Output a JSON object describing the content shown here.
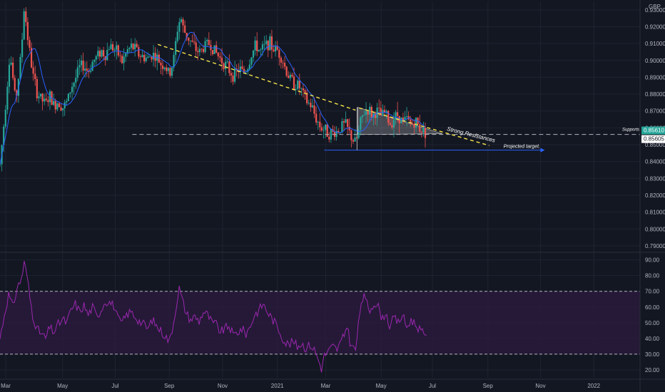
{
  "currency": "GBP",
  "colors": {
    "background": "#131722",
    "grid": "#1f2330",
    "up": "#26a69a",
    "down": "#ef5350",
    "ma": "#2962ff",
    "trendline": "#f5e44b",
    "rsi": "#9c27b0",
    "rsi_band": "#2a1a3d",
    "price_tag": "#26a69a"
  },
  "chart_data": [
    {
      "type": "candlestick",
      "pair_currency": "GBP",
      "x_tick_labels": [
        "Mar",
        "May",
        "Jul",
        "Sep",
        "Nov",
        "2021",
        "Mar",
        "May",
        "Jul",
        "Sep",
        "Nov",
        "2022"
      ],
      "y_tick_labels": [
        "0.93000",
        "0.92000",
        "0.91000",
        "0.90000",
        "0.89000",
        "0.88000",
        "0.87000",
        "0.86000",
        "0.85000",
        "0.84000",
        "0.83000",
        "0.82000",
        "0.81000",
        "0.80000",
        "0.79000"
      ],
      "ylim": [
        0.787,
        0.935
      ],
      "current_price": "0.85610",
      "support_price": "0.85605",
      "support_level": 0.8561,
      "target_level": 0.8468,
      "annotations": {
        "supports": "Supports",
        "strong_resistance": "Strong Resistances",
        "projected_target": "Projected target."
      },
      "price_path": [
        [
          0,
          0.838
        ],
        [
          6,
          0.865
        ],
        [
          14,
          0.905
        ],
        [
          22,
          0.875
        ],
        [
          30,
          0.905
        ],
        [
          34,
          0.932
        ],
        [
          40,
          0.91
        ],
        [
          46,
          0.892
        ],
        [
          52,
          0.881
        ],
        [
          58,
          0.877
        ],
        [
          64,
          0.874
        ],
        [
          70,
          0.879
        ],
        [
          76,
          0.873
        ],
        [
          82,
          0.876
        ],
        [
          88,
          0.872
        ],
        [
          94,
          0.875
        ],
        [
          100,
          0.884
        ],
        [
          106,
          0.889
        ],
        [
          112,
          0.896
        ],
        [
          118,
          0.897
        ],
        [
          124,
          0.893
        ],
        [
          130,
          0.899
        ],
        [
          136,
          0.902
        ],
        [
          142,
          0.906
        ],
        [
          148,
          0.903
        ],
        [
          154,
          0.909
        ],
        [
          160,
          0.907
        ],
        [
          166,
          0.904
        ],
        [
          172,
          0.899
        ],
        [
          178,
          0.905
        ],
        [
          184,
          0.908
        ],
        [
          190,
          0.907
        ],
        [
          196,
          0.903
        ],
        [
          202,
          0.902
        ],
        [
          208,
          0.901
        ],
        [
          214,
          0.904
        ],
        [
          220,
          0.902
        ],
        [
          226,
          0.898
        ],
        [
          232,
          0.897
        ],
        [
          238,
          0.891
        ],
        [
          244,
          0.9
        ],
        [
          250,
          0.92
        ],
        [
          254,
          0.926
        ],
        [
          258,
          0.918
        ],
        [
          264,
          0.914
        ],
        [
          270,
          0.91
        ],
        [
          276,
          0.906
        ],
        [
          282,
          0.905
        ],
        [
          288,
          0.909
        ],
        [
          294,
          0.91
        ],
        [
          300,
          0.907
        ],
        [
          306,
          0.903
        ],
        [
          312,
          0.9
        ],
        [
          318,
          0.897
        ],
        [
          324,
          0.893
        ],
        [
          330,
          0.891
        ],
        [
          336,
          0.895
        ],
        [
          342,
          0.893
        ],
        [
          348,
          0.896
        ],
        [
          354,
          0.904
        ],
        [
          360,
          0.909
        ],
        [
          366,
          0.905
        ],
        [
          372,
          0.908
        ],
        [
          378,
          0.911
        ],
        [
          384,
          0.907
        ],
        [
          390,
          0.906
        ],
        [
          396,
          0.902
        ],
        [
          402,
          0.894
        ],
        [
          408,
          0.889
        ],
        [
          414,
          0.886
        ],
        [
          420,
          0.885
        ],
        [
          426,
          0.88
        ],
        [
          432,
          0.875
        ],
        [
          438,
          0.873
        ],
        [
          444,
          0.866
        ],
        [
          450,
          0.861
        ],
        [
          456,
          0.859
        ],
        [
          462,
          0.857
        ],
        [
          468,
          0.857
        ],
        [
          474,
          0.858
        ],
        [
          480,
          0.861
        ],
        [
          486,
          0.862
        ],
        [
          490,
          0.858
        ],
        [
          496,
          0.853
        ],
        [
          500,
          0.851
        ],
        [
          504,
          0.857
        ],
        [
          508,
          0.865
        ],
        [
          512,
          0.869
        ],
        [
          518,
          0.871
        ],
        [
          524,
          0.867
        ],
        [
          530,
          0.87
        ],
        [
          536,
          0.867
        ],
        [
          542,
          0.869
        ],
        [
          548,
          0.862
        ],
        [
          554,
          0.866
        ],
        [
          560,
          0.868
        ],
        [
          566,
          0.863
        ],
        [
          572,
          0.865
        ],
        [
          578,
          0.862
        ],
        [
          584,
          0.864
        ],
        [
          590,
          0.86
        ],
        [
          596,
          0.858
        ],
        [
          600,
          0.857
        ]
      ],
      "rsi": {
        "y_tick_labels": [
          "90.00",
          "80.00",
          "70.00",
          "60.00",
          "50.00",
          "40.00",
          "30.00",
          "20.00"
        ],
        "ylim": [
          15,
          93
        ],
        "upper": 70,
        "lower": 30,
        "path": [
          [
            0,
            40
          ],
          [
            6,
            55
          ],
          [
            12,
            68
          ],
          [
            18,
            60
          ],
          [
            24,
            72
          ],
          [
            30,
            78
          ],
          [
            34,
            88
          ],
          [
            38,
            80
          ],
          [
            42,
            66
          ],
          [
            46,
            55
          ],
          [
            52,
            46
          ],
          [
            58,
            43
          ],
          [
            64,
            40
          ],
          [
            70,
            47
          ],
          [
            76,
            44
          ],
          [
            82,
            49
          ],
          [
            88,
            52
          ],
          [
            94,
            50
          ],
          [
            100,
            58
          ],
          [
            106,
            62
          ],
          [
            112,
            57
          ],
          [
            118,
            61
          ],
          [
            124,
            55
          ],
          [
            130,
            60
          ],
          [
            136,
            54
          ],
          [
            142,
            58
          ],
          [
            148,
            64
          ],
          [
            154,
            63
          ],
          [
            160,
            61
          ],
          [
            166,
            52
          ],
          [
            172,
            50
          ],
          [
            178,
            55
          ],
          [
            184,
            57
          ],
          [
            190,
            54
          ],
          [
            196,
            51
          ],
          [
            202,
            49
          ],
          [
            208,
            46
          ],
          [
            214,
            52
          ],
          [
            220,
            48
          ],
          [
            226,
            45
          ],
          [
            232,
            42
          ],
          [
            238,
            38
          ],
          [
            244,
            50
          ],
          [
            248,
            62
          ],
          [
            252,
            72
          ],
          [
            256,
            65
          ],
          [
            262,
            56
          ],
          [
            268,
            52
          ],
          [
            274,
            54
          ],
          [
            280,
            51
          ],
          [
            286,
            57
          ],
          [
            292,
            55
          ],
          [
            298,
            50
          ],
          [
            304,
            49
          ],
          [
            310,
            44
          ],
          [
            316,
            46
          ],
          [
            322,
            48
          ],
          [
            328,
            42
          ],
          [
            334,
            44
          ],
          [
            340,
            46
          ],
          [
            346,
            43
          ],
          [
            352,
            48
          ],
          [
            358,
            55
          ],
          [
            364,
            58
          ],
          [
            370,
            62
          ],
          [
            376,
            57
          ],
          [
            382,
            53
          ],
          [
            388,
            49
          ],
          [
            394,
            44
          ],
          [
            400,
            38
          ],
          [
            406,
            36
          ],
          [
            412,
            38
          ],
          [
            418,
            35
          ],
          [
            424,
            37
          ],
          [
            430,
            34
          ],
          [
            436,
            36
          ],
          [
            442,
            33
          ],
          [
            448,
            26
          ],
          [
            452,
            21
          ],
          [
            456,
            29
          ],
          [
            462,
            32
          ],
          [
            468,
            35
          ],
          [
            474,
            33
          ],
          [
            480,
            38
          ],
          [
            484,
            42
          ],
          [
            488,
            49
          ],
          [
            492,
            38
          ],
          [
            496,
            34
          ],
          [
            500,
            33
          ],
          [
            504,
            48
          ],
          [
            508,
            64
          ],
          [
            512,
            66
          ],
          [
            516,
            62
          ],
          [
            520,
            58
          ],
          [
            526,
            63
          ],
          [
            532,
            60
          ],
          [
            538,
            52
          ],
          [
            542,
            57
          ],
          [
            548,
            48
          ],
          [
            554,
            53
          ],
          [
            560,
            50
          ],
          [
            566,
            55
          ],
          [
            572,
            47
          ],
          [
            578,
            52
          ],
          [
            584,
            49
          ],
          [
            590,
            46
          ],
          [
            596,
            42
          ],
          [
            600,
            44
          ]
        ]
      }
    }
  ]
}
